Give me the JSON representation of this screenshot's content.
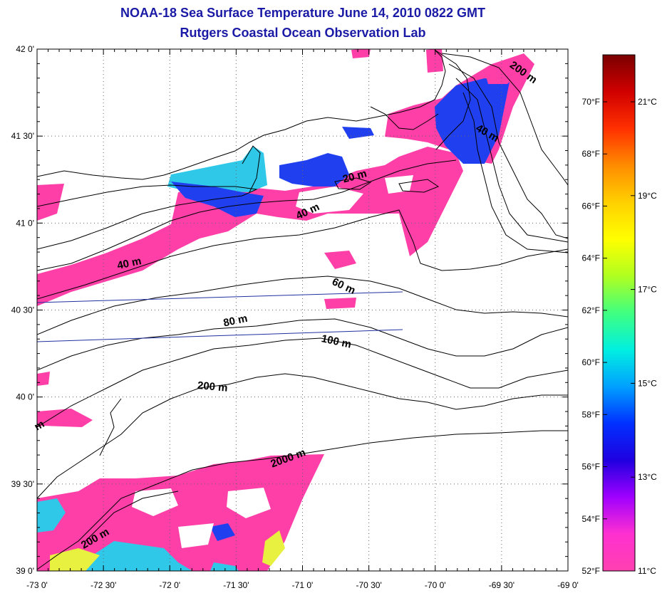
{
  "header": {
    "title": "NOAA-18 Sea Surface Temperature June 14, 2010 0822 GMT",
    "subtitle": "Rutgers Coastal Ocean Observation Lab"
  },
  "map": {
    "lon_range": [
      -73.0,
      -69.0
    ],
    "lat_range": [
      39.0,
      42.0
    ],
    "lon_ticks": [
      "-73 0'",
      "-72 30'",
      "-72 0'",
      "-71 30'",
      "-71 0'",
      "-70 30'",
      "-70 0'",
      "-69 30'",
      "-69 0'"
    ],
    "lat_ticks": [
      "42 0'",
      "41 30'",
      "41 0'",
      "40 30'",
      "40 0'",
      "39 30'",
      "39 0'"
    ],
    "grid": true,
    "contour_labels": [
      {
        "text": "200 m",
        "lon": -69.35,
        "lat": 41.85,
        "angle": 35
      },
      {
        "text": "40 m",
        "lon": -69.62,
        "lat": 41.5,
        "angle": 30
      },
      {
        "text": "20 m",
        "lon": -70.6,
        "lat": 41.25,
        "angle": -15
      },
      {
        "text": "40 m",
        "lon": -70.95,
        "lat": 41.05,
        "angle": -25
      },
      {
        "text": "40 m",
        "lon": -72.3,
        "lat": 40.75,
        "angle": -12
      },
      {
        "text": "60 m",
        "lon": -70.7,
        "lat": 40.62,
        "angle": 25
      },
      {
        "text": "80 m",
        "lon": -71.5,
        "lat": 40.42,
        "angle": -12
      },
      {
        "text": "100 m",
        "lon": -70.75,
        "lat": 40.3,
        "angle": 12
      },
      {
        "text": "200 m",
        "lon": -71.68,
        "lat": 40.04,
        "angle": 5
      },
      {
        "text": "2000 m",
        "lon": -71.1,
        "lat": 39.63,
        "angle": -20
      },
      {
        "text": "200 m",
        "lon": -72.55,
        "lat": 39.17,
        "angle": -30
      },
      {
        "text": "m",
        "lon": -72.97,
        "lat": 39.82,
        "angle": -30
      }
    ]
  },
  "colorbar": {
    "fahrenheit_labels": [
      "70°F",
      "68°F",
      "66°F",
      "64°F",
      "62°F",
      "60°F",
      "58°F",
      "56°F",
      "54°F",
      "52°F"
    ],
    "celsius_labels": [
      "21°C",
      "19°C",
      "17°C",
      "15°C",
      "13°C",
      "11°C"
    ],
    "colors": [
      "#7a0000",
      "#d00000",
      "#ff3000",
      "#ff8c00",
      "#ffd000",
      "#ffff00",
      "#b0ff20",
      "#40ff80",
      "#00f0e0",
      "#00a0ff",
      "#0030ff",
      "#2000e0",
      "#a000ff",
      "#ff30d0",
      "#ff40b0"
    ]
  },
  "sst_colors": {
    "pink": "#ff3fa8",
    "blue": "#2040f0",
    "cyan": "#30c8e8",
    "yellow": "#e8f040",
    "land_line": "#000000",
    "track_line": "#2030a0"
  }
}
